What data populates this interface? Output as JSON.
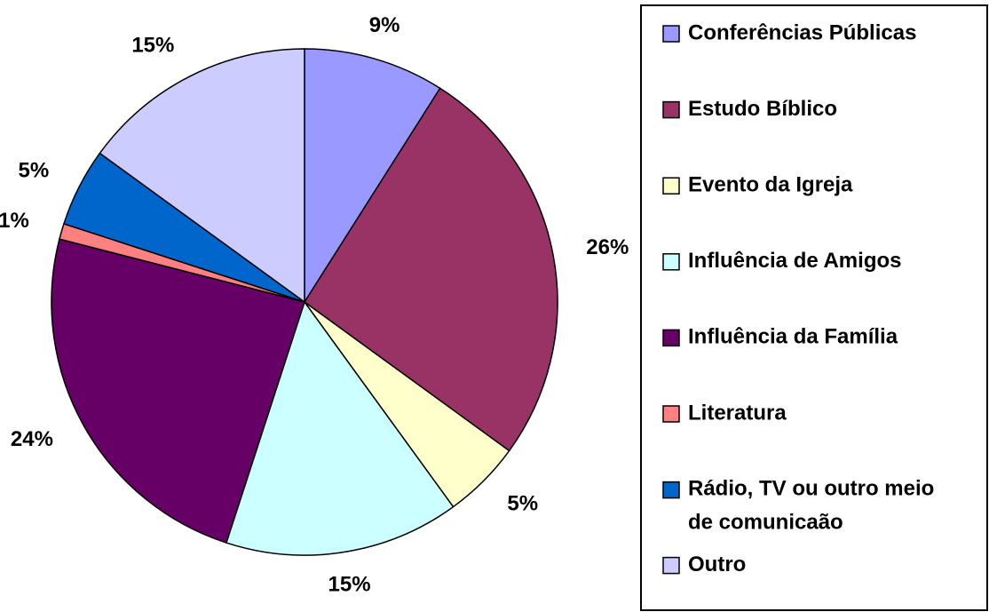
{
  "chart_data": {
    "type": "pie",
    "categories": [
      "Conferências Públicas",
      "Estudo Bíblico",
      "Evento da Igreja",
      "Influência de Amigos",
      "Influência da Família",
      "Literatura",
      "Rádio, TV ou outro meio de comunicaão",
      "Outro"
    ],
    "values": [
      9,
      26,
      5,
      15,
      24,
      1,
      5,
      15
    ],
    "value_labels": [
      "9%",
      "26%",
      "5%",
      "15%",
      "24%",
      "1%",
      "5%",
      "15%"
    ],
    "colors": [
      "#9999ff",
      "#993366",
      "#ffffcc",
      "#ccffff",
      "#660066",
      "#ff8080",
      "#0066cc",
      "#ccccff"
    ],
    "legend": "right"
  }
}
